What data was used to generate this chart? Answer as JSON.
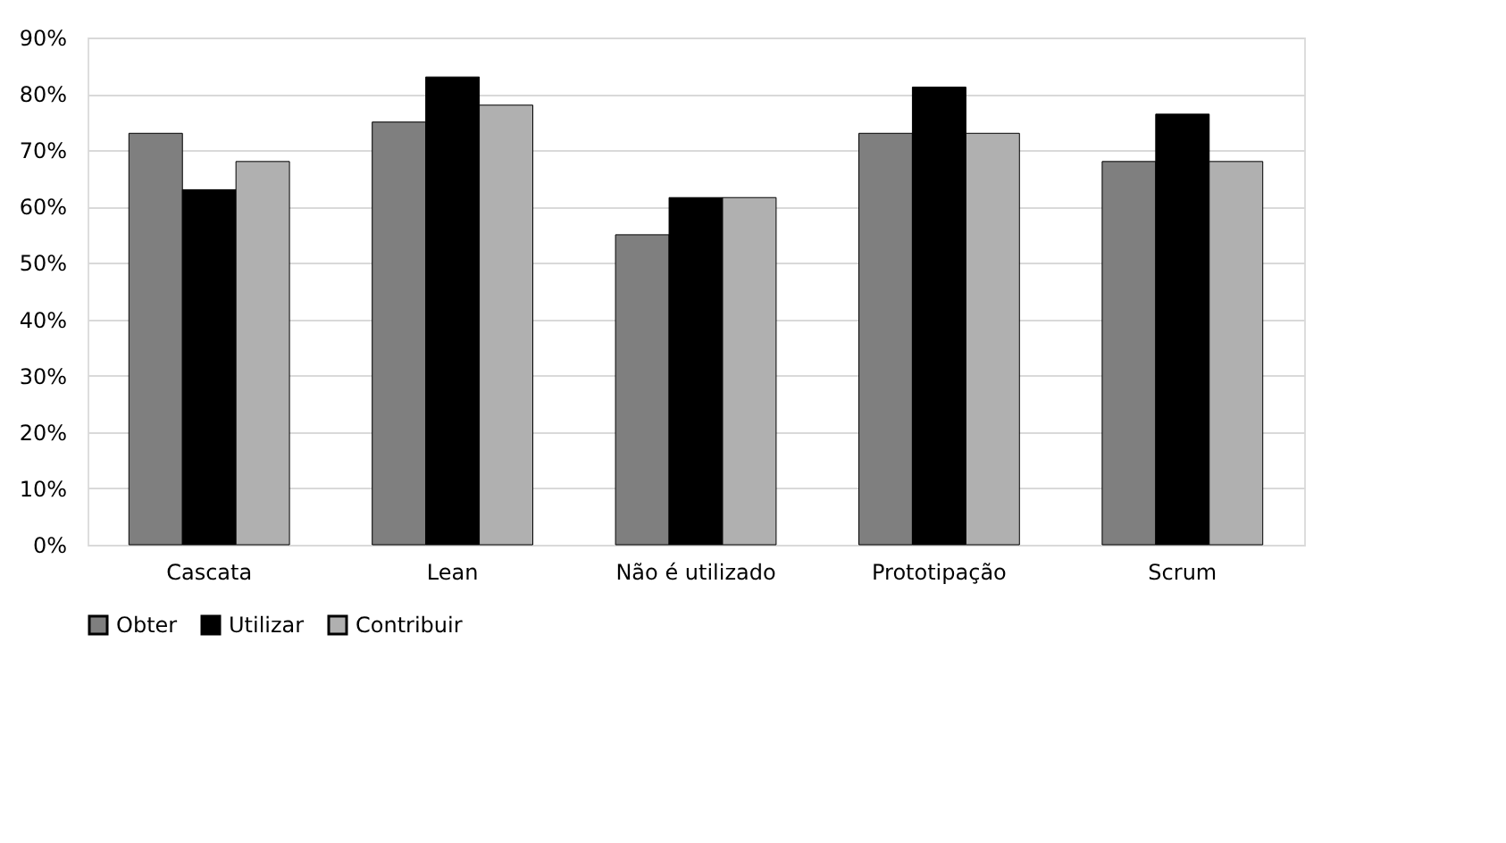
{
  "chart_data": {
    "type": "bar",
    "categories": [
      "Cascata",
      "Lean",
      "Não é utilizado",
      "Prototipação",
      "Scrum"
    ],
    "series": [
      {
        "name": "Obter",
        "color": "#7f7f7f",
        "values": [
          73,
          75,
          55,
          73,
          68
        ]
      },
      {
        "name": "Utilizar",
        "color": "#000000",
        "values": [
          63,
          83,
          61.6,
          81.2,
          76.4
        ]
      },
      {
        "name": "Contribuir",
        "color": "#b0b0b0",
        "values": [
          68,
          78,
          61.6,
          73,
          68
        ]
      }
    ],
    "ylim": [
      0,
      90
    ],
    "yticks": [
      {
        "value": 0,
        "label": "0%"
      },
      {
        "value": 10,
        "label": "10%"
      },
      {
        "value": 20,
        "label": "20%"
      },
      {
        "value": 30,
        "label": "30%"
      },
      {
        "value": 40,
        "label": "40%"
      },
      {
        "value": 50,
        "label": "50%"
      },
      {
        "value": 60,
        "label": "60%"
      },
      {
        "value": 70,
        "label": "70%"
      },
      {
        "value": 80,
        "label": "80%"
      },
      {
        "value": 90,
        "label": "90%"
      }
    ],
    "grid": "y",
    "legend": "bottom"
  }
}
